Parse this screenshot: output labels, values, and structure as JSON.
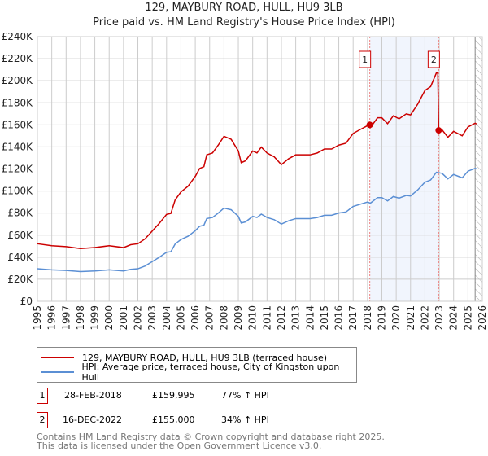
{
  "chart_data": {
    "type": "line",
    "title": "129, MAYBURY ROAD, HULL, HU9 3LB",
    "subtitle": "Price paid vs. HM Land Registry's House Price Index (HPI)",
    "xlim": [
      1995,
      2026
    ],
    "ylim": [
      0,
      240000
    ],
    "y_ticks": [
      "£0",
      "£20K",
      "£40K",
      "£60K",
      "£80K",
      "£100K",
      "£120K",
      "£140K",
      "£160K",
      "£180K",
      "£200K",
      "£220K",
      "£240K"
    ],
    "x_ticks": [
      "1995",
      "1996",
      "1997",
      "1998",
      "1999",
      "2000",
      "2001",
      "2002",
      "2003",
      "2004",
      "2005",
      "2006",
      "2007",
      "2008",
      "2009",
      "2010",
      "2011",
      "2012",
      "2013",
      "2014",
      "2015",
      "2016",
      "2017",
      "2018",
      "2019",
      "2020",
      "2021",
      "2022",
      "2023",
      "2024",
      "2025",
      "2026"
    ],
    "grid": true,
    "series": [
      {
        "name": "129, MAYBURY ROAD, HULL, HU9 3LB (terraced house)",
        "color": "#cc0000",
        "x": [
          1995,
          1996,
          1997,
          1998,
          1999,
          2000,
          2001,
          2001.5,
          2002,
          2002.5,
          2003,
          2003.5,
          2004,
          2004.3,
          2004.6,
          2005,
          2005.5,
          2006,
          2006.3,
          2006.6,
          2006.8,
          2007.2,
          2007.6,
          2008,
          2008.5,
          2009,
          2009.2,
          2009.5,
          2010,
          2010.3,
          2010.6,
          2011,
          2011.5,
          2012,
          2012.5,
          2013,
          2013.5,
          2014,
          2014.5,
          2015,
          2015.5,
          2016,
          2016.5,
          2017,
          2017.5,
          2018,
          2018.2,
          2018.7,
          2019,
          2019.4,
          2019.8,
          2020.2,
          2020.7,
          2021,
          2021.5,
          2022,
          2022.4,
          2022.8,
          2022.9,
          2022.96,
          2023.2,
          2023.6,
          2024,
          2024.6,
          2025,
          2025.5,
          2025.6
        ],
        "y": [
          52.2,
          50.4,
          49.6,
          47.8,
          48.7,
          50.4,
          48.7,
          51.3,
          52.2,
          56.6,
          63.7,
          70.8,
          78.8,
          79.7,
          92,
          99.1,
          104.4,
          113.3,
          120.4,
          122.1,
          132.8,
          134.5,
          141.6,
          149.6,
          146.9,
          136.3,
          125.7,
          127.4,
          136.3,
          134.5,
          139.8,
          134.5,
          131,
          123.9,
          129.2,
          132.8,
          132.8,
          132.8,
          134.5,
          138.1,
          138.1,
          141.6,
          143.4,
          152.2,
          155.8,
          159.3,
          157.5,
          166.4,
          166.4,
          161.1,
          168.2,
          165.5,
          169.9,
          169,
          178.8,
          191.2,
          194.7,
          207.1,
          207,
          155,
          155.4,
          148.7,
          154.1,
          150.1,
          158.1,
          161.5,
          160.8
        ]
      },
      {
        "name": "HPI: Average price, terraced house, City of Kingston upon Hull",
        "color": "#5b8fd4",
        "x": [
          1995,
          1996,
          1997,
          1998,
          1999,
          2000,
          2001,
          2001.5,
          2002,
          2002.5,
          2003,
          2003.5,
          2004,
          2004.3,
          2004.6,
          2005,
          2005.5,
          2006,
          2006.3,
          2006.6,
          2006.8,
          2007.2,
          2007.6,
          2008,
          2008.5,
          2009,
          2009.2,
          2009.5,
          2010,
          2010.3,
          2010.6,
          2011,
          2011.5,
          2012,
          2012.5,
          2013,
          2013.5,
          2014,
          2014.5,
          2015,
          2015.5,
          2016,
          2016.5,
          2017,
          2017.5,
          2018,
          2018.2,
          2018.7,
          2019,
          2019.4,
          2019.8,
          2020.2,
          2020.7,
          2021,
          2021.5,
          2022,
          2022.4,
          2022.8,
          2023.2,
          2023.6,
          2024,
          2024.6,
          2025,
          2025.5,
          2025.6
        ],
        "y": [
          29.5,
          28.5,
          28,
          27,
          27.5,
          28.5,
          27.5,
          29,
          29.5,
          32,
          36,
          40,
          44.5,
          45,
          52,
          56,
          59,
          64,
          68,
          69,
          75,
          76,
          80,
          84.5,
          83,
          77,
          71,
          72,
          77,
          76,
          79,
          76,
          74,
          70,
          73,
          75,
          75,
          75,
          76,
          78,
          78,
          80,
          81,
          86,
          88,
          90,
          89,
          94,
          94,
          91,
          95,
          93.5,
          96,
          95.5,
          101,
          108,
          110,
          117,
          116,
          111,
          115,
          112,
          118,
          120.5,
          120
        ]
      }
    ],
    "y_unit": "thousand GBP",
    "sales": [
      {
        "label": "1",
        "x": 2018.16,
        "y": 159.995,
        "date": "28-FEB-2018",
        "price": "£159,995",
        "hpi": "77% ↑ HPI"
      },
      {
        "label": "2",
        "x": 2022.96,
        "y": 155,
        "date": "16-DEC-2022",
        "price": "£155,000",
        "hpi": "34% ↑ HPI"
      }
    ],
    "hatch_from": 2025.5,
    "legend_placement": "below"
  },
  "footer": {
    "line1": "Contains HM Land Registry data © Crown copyright and database right 2025.",
    "line2": "This data is licensed under the Open Government Licence v3.0."
  }
}
